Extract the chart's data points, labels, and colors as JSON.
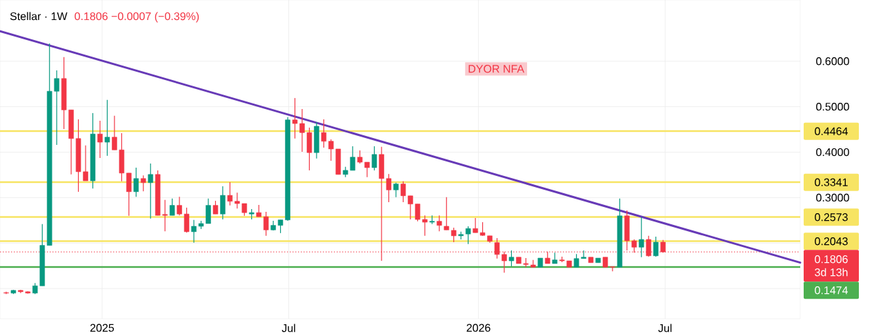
{
  "chart_data": {
    "type": "candlestick",
    "title": "Stellar · 1W",
    "subtitle": "0.1806 −0.0007 (−0.39%)",
    "x": [
      "2024-09-30",
      "2024-10-07",
      "2024-10-14",
      "2024-10-21",
      "2024-10-28",
      "2024-11-04",
      "2024-11-11",
      "2024-11-18",
      "2024-11-25",
      "2024-12-02",
      "2024-12-09",
      "2024-12-16",
      "2024-12-23",
      "2024-12-30",
      "2025-01-06",
      "2025-01-13",
      "2025-01-20",
      "2025-01-27",
      "2025-02-03",
      "2025-02-10",
      "2025-02-17",
      "2025-02-24",
      "2025-03-03",
      "2025-03-10",
      "2025-03-17",
      "2025-03-24",
      "2025-03-31",
      "2025-04-07",
      "2025-04-14",
      "2025-04-21",
      "2025-04-28",
      "2025-05-05",
      "2025-05-12",
      "2025-05-19",
      "2025-05-26",
      "2025-06-02",
      "2025-06-09",
      "2025-06-16",
      "2025-06-23",
      "2025-06-30",
      "2025-07-07",
      "2025-07-14",
      "2025-07-21",
      "2025-07-28",
      "2025-08-04",
      "2025-08-11",
      "2025-08-18",
      "2025-08-25",
      "2025-09-01",
      "2025-09-08",
      "2025-09-15",
      "2025-09-22",
      "2025-09-29",
      "2025-10-06",
      "2025-10-13",
      "2025-10-20",
      "2025-10-27",
      "2025-11-03",
      "2025-11-10",
      "2025-11-17",
      "2025-11-24",
      "2025-12-01",
      "2025-12-08",
      "2025-12-15",
      "2025-12-22",
      "2025-12-29",
      "2026-01-05",
      "2026-01-12",
      "2026-01-19",
      "2026-01-26",
      "2026-02-02",
      "2026-02-09",
      "2026-02-16",
      "2026-02-23",
      "2026-03-02",
      "2026-03-09",
      "2026-03-16",
      "2026-03-23",
      "2026-03-30",
      "2026-04-06",
      "2026-04-13",
      "2026-04-20",
      "2026-04-27",
      "2026-05-04",
      "2026-05-11",
      "2026-05-18",
      "2026-05-25",
      "2026-06-01",
      "2026-06-08",
      "2026-06-15",
      "2026-06-22",
      "2026-06-29"
    ],
    "ohlc": [
      [
        0.091,
        0.093,
        0.088,
        0.09
      ],
      [
        0.09,
        0.097,
        0.088,
        0.096
      ],
      [
        0.096,
        0.097,
        0.09,
        0.093
      ],
      [
        0.093,
        0.094,
        0.089,
        0.09
      ],
      [
        0.09,
        0.112,
        0.088,
        0.106
      ],
      [
        0.106,
        0.242,
        0.106,
        0.195
      ],
      [
        0.195,
        0.639,
        0.195,
        0.534
      ],
      [
        0.534,
        0.58,
        0.416,
        0.562
      ],
      [
        0.562,
        0.609,
        0.451,
        0.493
      ],
      [
        0.493,
        0.493,
        0.351,
        0.43
      ],
      [
        0.43,
        0.472,
        0.313,
        0.357
      ],
      [
        0.357,
        0.415,
        0.337,
        0.337
      ],
      [
        0.337,
        0.486,
        0.32,
        0.44
      ],
      [
        0.44,
        0.469,
        0.387,
        0.422
      ],
      [
        0.422,
        0.515,
        0.392,
        0.433
      ],
      [
        0.433,
        0.48,
        0.405,
        0.405
      ],
      [
        0.405,
        0.442,
        0.336,
        0.354
      ],
      [
        0.354,
        0.354,
        0.26,
        0.313
      ],
      [
        0.313,
        0.366,
        0.302,
        0.342
      ],
      [
        0.342,
        0.349,
        0.314,
        0.333
      ],
      [
        0.333,
        0.375,
        0.254,
        0.351
      ],
      [
        0.351,
        0.36,
        0.261,
        0.261
      ],
      [
        0.263,
        0.295,
        0.226,
        0.261
      ],
      [
        0.261,
        0.298,
        0.261,
        0.283
      ],
      [
        0.283,
        0.302,
        0.261,
        0.264
      ],
      [
        0.264,
        0.278,
        0.223,
        0.225
      ],
      [
        0.225,
        0.251,
        0.201,
        0.237
      ],
      [
        0.237,
        0.249,
        0.231,
        0.243
      ],
      [
        0.243,
        0.298,
        0.243,
        0.283
      ],
      [
        0.283,
        0.293,
        0.264,
        0.264
      ],
      [
        0.264,
        0.325,
        0.252,
        0.305
      ],
      [
        0.305,
        0.334,
        0.283,
        0.292
      ],
      [
        0.292,
        0.311,
        0.276,
        0.287
      ],
      [
        0.287,
        0.287,
        0.26,
        0.267
      ],
      [
        0.264,
        0.275,
        0.252,
        0.267
      ],
      [
        0.267,
        0.284,
        0.258,
        0.258
      ],
      [
        0.258,
        0.269,
        0.216,
        0.229
      ],
      [
        0.229,
        0.249,
        0.228,
        0.239
      ],
      [
        0.239,
        0.251,
        0.222,
        0.251
      ],
      [
        0.251,
        0.477,
        0.249,
        0.471
      ],
      [
        0.471,
        0.519,
        0.43,
        0.463
      ],
      [
        0.463,
        0.495,
        0.401,
        0.443
      ],
      [
        0.443,
        0.454,
        0.36,
        0.399
      ],
      [
        0.399,
        0.466,
        0.386,
        0.457
      ],
      [
        0.443,
        0.472,
        0.41,
        0.424
      ],
      [
        0.424,
        0.428,
        0.381,
        0.407
      ],
      [
        0.407,
        0.407,
        0.351,
        0.351
      ],
      [
        0.351,
        0.368,
        0.345,
        0.36
      ],
      [
        0.36,
        0.413,
        0.36,
        0.389
      ],
      [
        0.389,
        0.404,
        0.375,
        0.378
      ],
      [
        0.378,
        0.378,
        0.345,
        0.366
      ],
      [
        0.366,
        0.413,
        0.36,
        0.395
      ],
      [
        0.395,
        0.412,
        0.161,
        0.342
      ],
      [
        0.342,
        0.352,
        0.29,
        0.317
      ],
      [
        0.317,
        0.333,
        0.301,
        0.33
      ],
      [
        0.33,
        0.336,
        0.29,
        0.304
      ],
      [
        0.304,
        0.304,
        0.252,
        0.286
      ],
      [
        0.286,
        0.286,
        0.248,
        0.252
      ],
      [
        0.252,
        0.261,
        0.216,
        0.246
      ],
      [
        0.246,
        0.261,
        0.242,
        0.248
      ],
      [
        0.248,
        0.261,
        0.226,
        0.239
      ],
      [
        0.237,
        0.301,
        0.229,
        0.229
      ],
      [
        0.228,
        0.234,
        0.202,
        0.216
      ],
      [
        0.216,
        0.225,
        0.208,
        0.219
      ],
      [
        0.22,
        0.237,
        0.198,
        0.232
      ],
      [
        0.232,
        0.255,
        0.223,
        0.223
      ],
      [
        0.223,
        0.246,
        0.216,
        0.217
      ],
      [
        0.216,
        0.216,
        0.201,
        0.204
      ],
      [
        0.201,
        0.211,
        0.166,
        0.175
      ],
      [
        0.175,
        0.181,
        0.135,
        0.161
      ],
      [
        0.161,
        0.184,
        0.149,
        0.169
      ],
      [
        0.169,
        0.169,
        0.155,
        0.155
      ],
      [
        0.155,
        0.167,
        0.147,
        0.153
      ],
      [
        0.152,
        0.163,
        0.147,
        0.147
      ],
      [
        0.147,
        0.167,
        0.147,
        0.167
      ],
      [
        0.167,
        0.181,
        0.155,
        0.155
      ],
      [
        0.155,
        0.179,
        0.155,
        0.163
      ],
      [
        0.163,
        0.17,
        0.158,
        0.161
      ],
      [
        0.161,
        0.161,
        0.147,
        0.147
      ],
      [
        0.147,
        0.176,
        0.147,
        0.166
      ],
      [
        0.166,
        0.184,
        0.166,
        0.169
      ],
      [
        0.169,
        0.169,
        0.157,
        0.157
      ],
      [
        0.157,
        0.167,
        0.157,
        0.167
      ],
      [
        0.169,
        0.169,
        0.147,
        0.147
      ],
      [
        0.148,
        0.148,
        0.138,
        0.147
      ],
      [
        0.147,
        0.298,
        0.147,
        0.26
      ],
      [
        0.26,
        0.272,
        0.184,
        0.205
      ],
      [
        0.205,
        0.208,
        0.179,
        0.191
      ],
      [
        0.191,
        0.257,
        0.169,
        0.208
      ],
      [
        0.208,
        0.216,
        0.17,
        0.172
      ],
      [
        0.172,
        0.214,
        0.17,
        0.202
      ],
      [
        0.202,
        0.207,
        0.179,
        0.1806
      ]
    ],
    "colors": [
      "#f23645",
      "#089981",
      "#f23645",
      "#f23645",
      "#089981",
      "#089981",
      "#089981",
      "#089981",
      "#f23645",
      "#f23645",
      "#f23645",
      "#f23645",
      "#089981",
      "#f23645",
      "#089981",
      "#f23645",
      "#f23645",
      "#f23645",
      "#089981",
      "#f23645",
      "#089981",
      "#f23645",
      "#f23645",
      "#089981",
      "#f23645",
      "#f23645",
      "#089981",
      "#089981",
      "#089981",
      "#f23645",
      "#089981",
      "#f23645",
      "#f23645",
      "#f23645",
      "#089981",
      "#f23645",
      "#f23645",
      "#089981",
      "#089981",
      "#089981",
      "#f23645",
      "#f23645",
      "#f23645",
      "#089981",
      "#f23645",
      "#f23645",
      "#f23645",
      "#089981",
      "#089981",
      "#f23645",
      "#f23645",
      "#089981",
      "#f23645",
      "#f23645",
      "#089981",
      "#f23645",
      "#f23645",
      "#f23645",
      "#f23645",
      "#089981",
      "#f23645",
      "#f23645",
      "#f23645",
      "#089981",
      "#089981",
      "#f23645",
      "#f23645",
      "#f23645",
      "#f23645",
      "#f23645",
      "#089981",
      "#f23645",
      "#f23645",
      "#f23645",
      "#089981",
      "#f23645",
      "#089981",
      "#f23645",
      "#f23645",
      "#089981",
      "#089981",
      "#f23645",
      "#089981",
      "#f23645",
      "#f23645",
      "#089981",
      "#f23645",
      "#f23645",
      "#089981",
      "#f23645",
      "#089981",
      "#f23645"
    ],
    "series": [
      {
        "type": "line",
        "x": [
          "2024-09-24",
          "2026-11-09"
        ],
        "values": [
          0.666,
          0.157
        ],
        "color": "#673ab7"
      }
    ],
    "xlim": [
      "2024-09-24",
      "2026-11-09"
    ],
    "ylim": [
      0.0336,
      0.7347
    ],
    "xticks": [
      {
        "value": "2025-01-01",
        "label": "2025"
      },
      {
        "value": "2025-07-01",
        "label": "Jul"
      },
      {
        "value": "2026-01-01",
        "label": "2026"
      },
      {
        "value": "2026-07-01",
        "label": "Jul"
      }
    ],
    "yticks": [
      {
        "value": 0.6,
        "label": "0.6000"
      },
      {
        "value": 0.5,
        "label": "0.5000"
      },
      {
        "value": 0.4,
        "label": "0.4000"
      },
      {
        "value": 0.3,
        "label": "0.3000"
      },
      {
        "value": 0.2,
        "label": null
      },
      {
        "value": 0.1,
        "label": null
      }
    ],
    "grid": true,
    "ref_lines": [
      {
        "axis": "y",
        "value": 0.4464,
        "label": "0.4464",
        "color": "#f7e463"
      },
      {
        "axis": "y",
        "value": 0.3341,
        "label": "0.3341",
        "color": "#f7e463"
      },
      {
        "axis": "y",
        "value": 0.2573,
        "label": "0.2573",
        "color": "#f7e463"
      },
      {
        "axis": "y",
        "value": 0.2043,
        "label": "0.2043",
        "color": "#f7e463"
      },
      {
        "axis": "y",
        "value": 0.1806,
        "label": "0.1806",
        "color": "#f23645",
        "line_style": "dotted"
      },
      {
        "axis": "y",
        "value": 0.1474,
        "label": "0.1474",
        "color": "#4caf50"
      }
    ],
    "annotations": [
      "DYOR NFA",
      "3d 13h"
    ]
  }
}
